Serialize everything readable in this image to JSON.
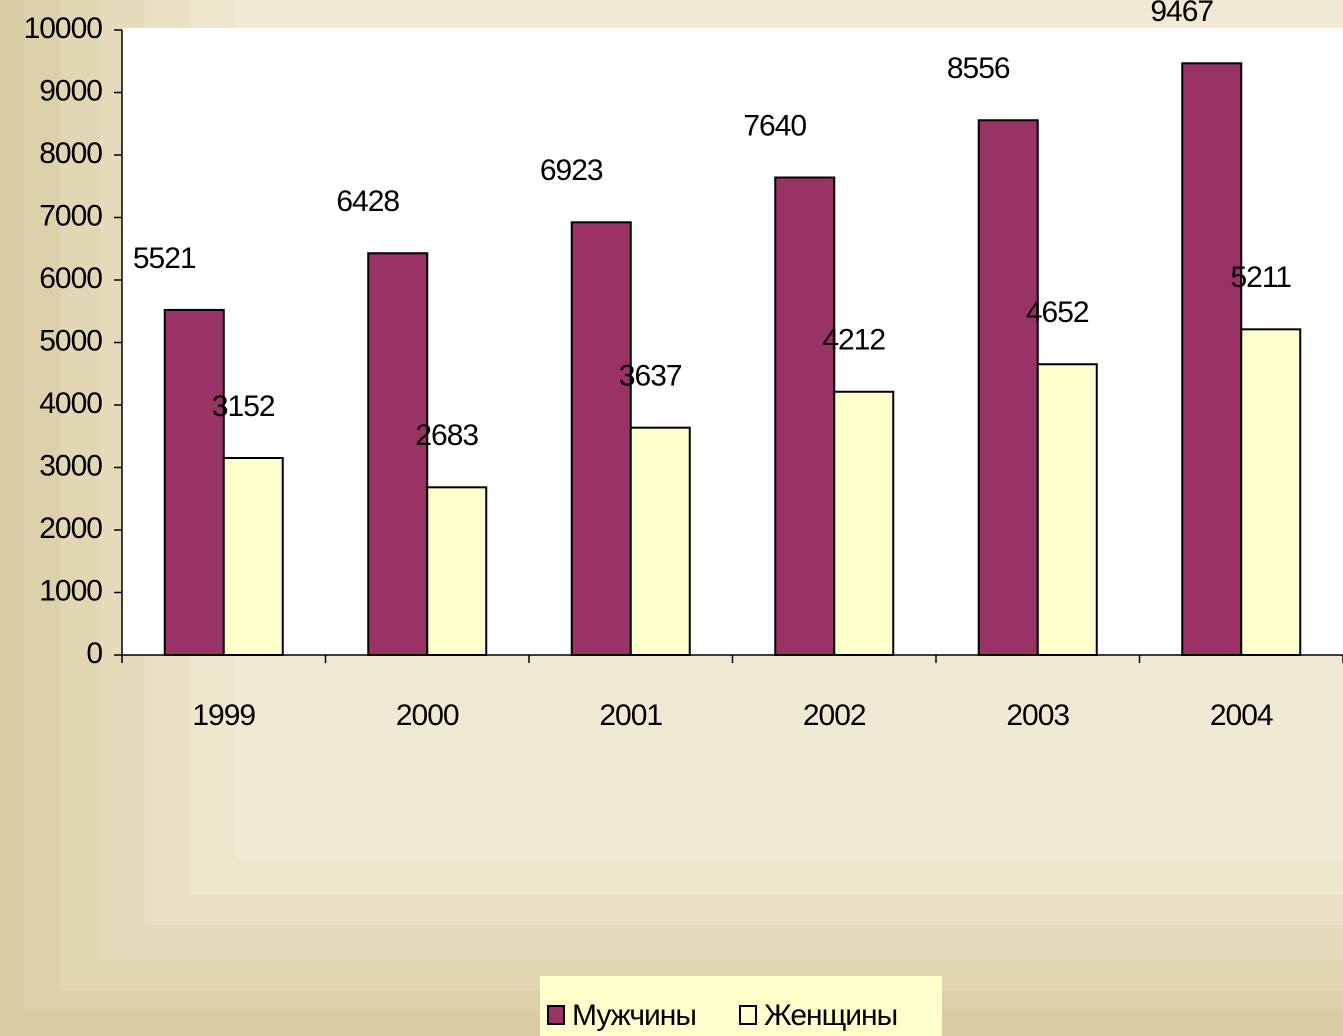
{
  "chart_data": {
    "type": "bar",
    "categories": [
      "1999",
      "2000",
      "2001",
      "2002",
      "2003",
      "2004"
    ],
    "series": [
      {
        "name": "Мужчины",
        "color": "#993366",
        "values": [
          5521,
          6428,
          6923,
          7640,
          8556,
          9467
        ]
      },
      {
        "name": "Женщины",
        "color": "#ffffcc",
        "values": [
          3152,
          2683,
          3637,
          4212,
          4652,
          5211
        ]
      }
    ],
    "ylim": [
      0,
      10000
    ],
    "yticks": [
      0,
      1000,
      2000,
      3000,
      4000,
      5000,
      6000,
      7000,
      8000,
      9000,
      10000
    ],
    "legend": "bottom"
  }
}
